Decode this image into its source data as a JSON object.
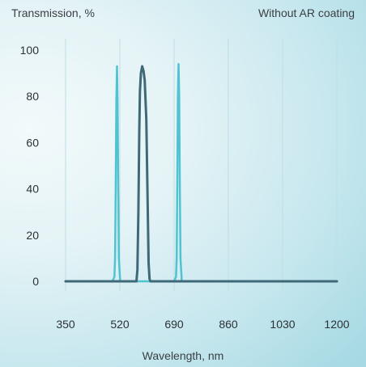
{
  "chart_data": {
    "type": "line",
    "title": "",
    "ylabel": "Transmission, %",
    "annotation": "Without AR coating",
    "xlabel": "Wavelength, nm",
    "xlim": [
      350,
      1200
    ],
    "ylim": [
      0,
      100
    ],
    "x_ticks": [
      "350",
      "520",
      "690",
      "860",
      "1030",
      "1200"
    ],
    "y_ticks": [
      "100",
      "80",
      "60",
      "40",
      "20",
      "0"
    ],
    "grid": "vertical",
    "series": [
      {
        "color": "#4fc3d1",
        "x": [
          350,
          497,
          503,
          505,
          507,
          509,
          511,
          513,
          515,
          517,
          521,
          690,
          696,
          698,
          700,
          702,
          704,
          706,
          708,
          710,
          714,
          1200
        ],
        "y": [
          0,
          0,
          2,
          10,
          40,
          78,
          93,
          78,
          40,
          10,
          0,
          0,
          2,
          10,
          40,
          80,
          94,
          80,
          40,
          10,
          0,
          0
        ]
      },
      {
        "color": "#3f6878",
        "x": [
          350,
          572,
          575,
          578,
          581,
          583,
          586,
          590,
          594,
          598,
          603,
          607,
          610,
          613,
          616,
          619,
          622,
          1200
        ],
        "y": [
          0,
          0,
          5,
          30,
          65,
          82,
          90,
          93,
          91,
          87,
          70,
          35,
          8,
          1,
          0,
          0,
          0,
          0
        ]
      }
    ]
  }
}
